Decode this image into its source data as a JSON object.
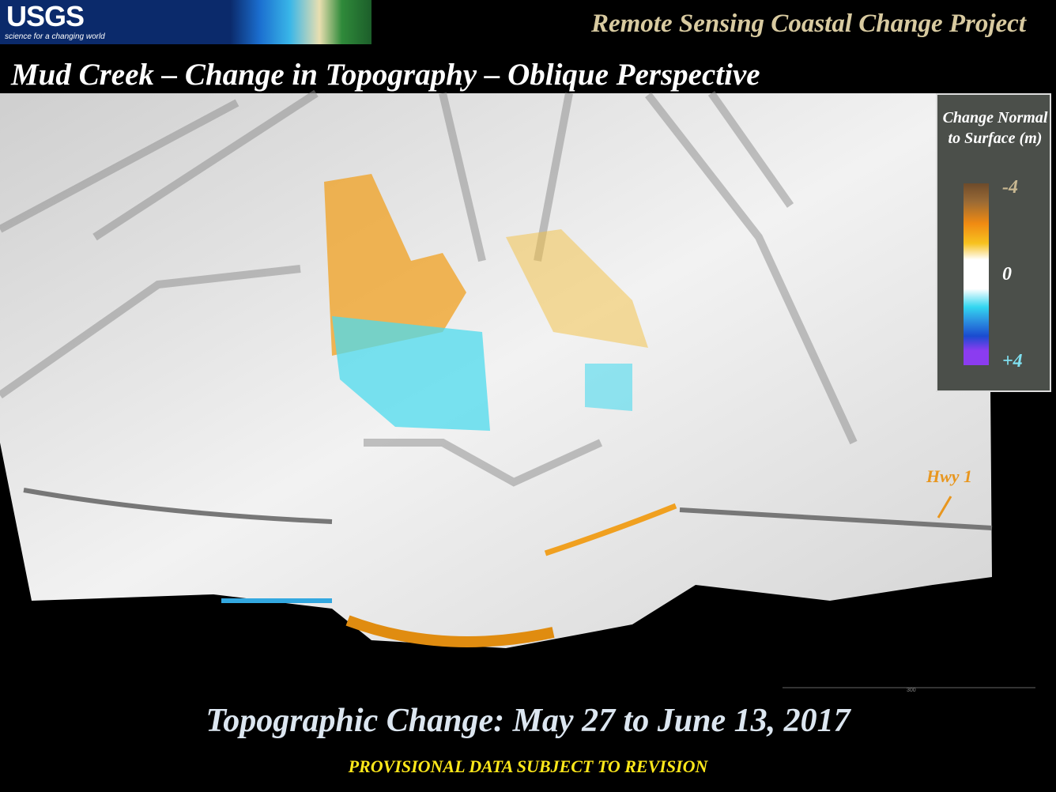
{
  "header": {
    "logo": "USGS",
    "logo_tagline": "science for a changing world",
    "project": "Remote Sensing Coastal Change Project"
  },
  "title": "Mud Creek – Change in Topography – Oblique Perspective",
  "legend": {
    "title": "Change Normal to Surface (m)",
    "labels": [
      "-4",
      "0",
      "+4"
    ]
  },
  "annotation": "Hwy 1",
  "scale_label": "300",
  "footer": {
    "title": "Topographic Change:  May 27 to June 13, 2017",
    "note": "PROVISIONAL DATA SUBJECT TO REVISION"
  }
}
